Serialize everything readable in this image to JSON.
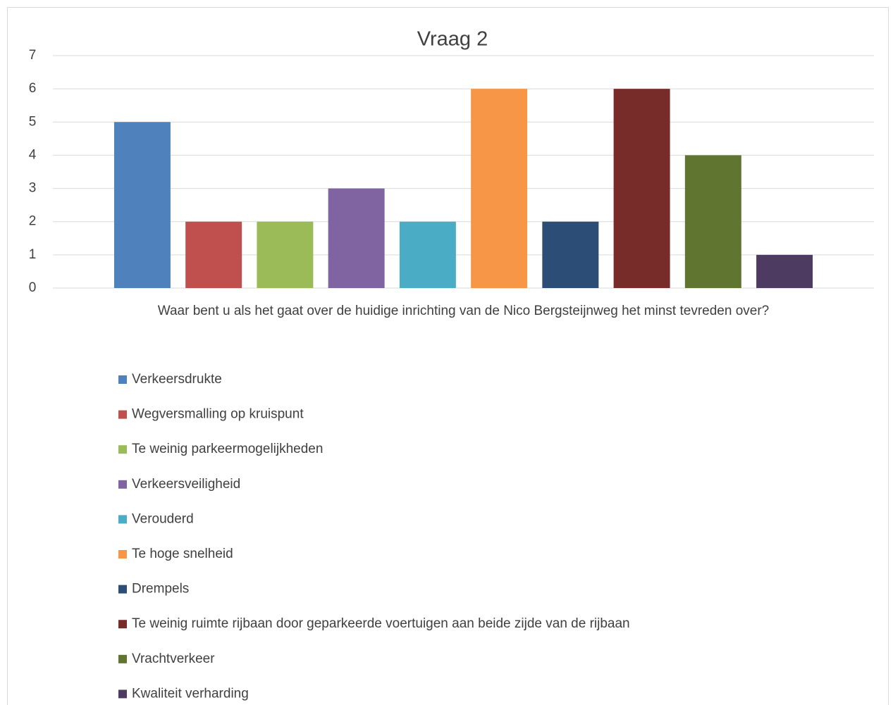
{
  "chart_data": {
    "type": "bar",
    "title": "Vraag 2",
    "categories": [
      "Waar bent u als het gaat over de huidige inrichting van de Nico Bergsteijnweg het minst tevreden over?"
    ],
    "series": [
      {
        "name": "Verkeersdrukte",
        "color": "#4f81bd",
        "values": [
          5
        ]
      },
      {
        "name": "Wegversmalling op kruispunt",
        "color": "#c0504d",
        "values": [
          2
        ]
      },
      {
        "name": "Te weinig parkeermogelijkheden",
        "color": "#9bbb59",
        "values": [
          2
        ]
      },
      {
        "name": "Verkeersveiligheid",
        "color": "#8064a2",
        "values": [
          3
        ]
      },
      {
        "name": "Verouderd",
        "color": "#4bacc6",
        "values": [
          2
        ]
      },
      {
        "name": "Te hoge snelheid",
        "color": "#f79646",
        "values": [
          6
        ]
      },
      {
        "name": "Drempels",
        "color": "#2c4d75",
        "values": [
          2
        ]
      },
      {
        "name": "Te weinig ruimte rijbaan door geparkeerde voertuigen aan beide zijde van de rijbaan",
        "color": "#772c2a",
        "values": [
          6
        ]
      },
      {
        "name": "Vrachtverkeer",
        "color": "#5f7530",
        "values": [
          4
        ]
      },
      {
        "name": "Kwaliteit verharding",
        "color": "#4d3b62",
        "values": [
          1
        ]
      }
    ],
    "ylim": [
      0,
      7
    ],
    "yticks": [
      0,
      1,
      2,
      3,
      4,
      5,
      6,
      7
    ],
    "grid": true,
    "legend": "bottom"
  }
}
